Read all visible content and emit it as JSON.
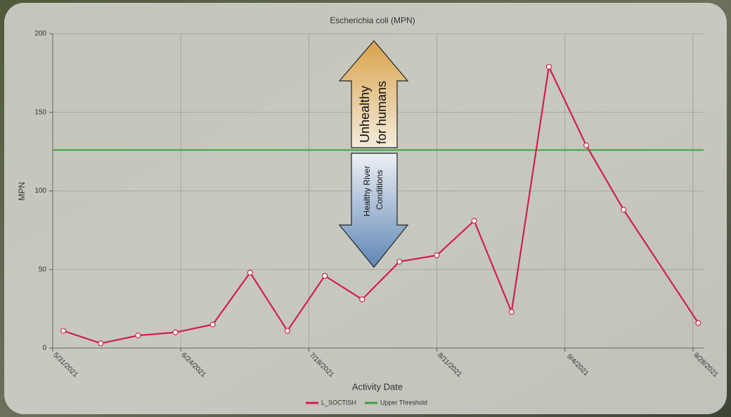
{
  "chart_data": {
    "type": "line",
    "title": "Escherichia coli (MPN)",
    "x_label": "Activity Date",
    "y_label": "MPN",
    "x": [
      "6/2/2021",
      "6/9/2021",
      "6/16/2021",
      "6/23/2021",
      "6/30/2021",
      "7/7/2021",
      "7/14/2021",
      "7/21/2021",
      "7/28/2021",
      "8/4/2021",
      "8/11/2021",
      "8/18/2021",
      "8/25/2021",
      "9/1/2021",
      "9/8/2021",
      "9/15/2021",
      "9/29/2021"
    ],
    "series": [
      {
        "name": "L_SOCTISH",
        "color": "#d0204a",
        "values": [
          11,
          3,
          8,
          10,
          15,
          48,
          11,
          46,
          31,
          55,
          59,
          81,
          23,
          179,
          129,
          88,
          16
        ]
      }
    ],
    "threshold": {
      "name": "Upper Threshold",
      "color": "#3aa33a",
      "value": 126
    },
    "xlim": [
      "5/31/2021",
      "9/30/2021"
    ],
    "xticks": [
      "5/31/2021",
      "6/24/2021",
      "7/18/2021",
      "8/11/2021",
      "9/4/2021",
      "9/28/2021"
    ],
    "ylim": [
      0,
      200
    ],
    "yticks": [
      0,
      50,
      100,
      150,
      200
    ],
    "grid": true,
    "annotations": [
      [
        "Unhealthy",
        "for humans"
      ],
      [
        "Healthy River",
        "Conditions"
      ]
    ]
  }
}
